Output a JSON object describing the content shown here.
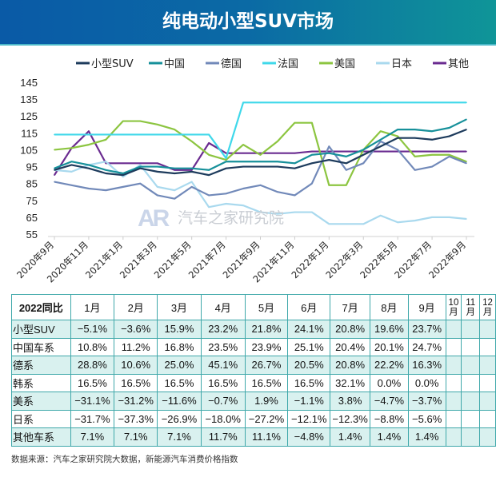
{
  "title": "纯电动小型SUV市场",
  "watermark": {
    "logo": "AR",
    "text": "汽车之家研究院"
  },
  "chart_data": {
    "type": "line",
    "title": "",
    "xlabel": "",
    "ylabel": "",
    "ylim": [
      55,
      145
    ],
    "yticks": [
      55,
      65,
      75,
      85,
      95,
      105,
      115,
      125,
      135,
      145
    ],
    "grid": false,
    "legend": "top",
    "x": [
      "2020年9月",
      "2020年10月",
      "2020年11月",
      "2020年12月",
      "2021年1月",
      "2021年2月",
      "2021年3月",
      "2021年4月",
      "2021年5月",
      "2021年6月",
      "2021年7月",
      "2021年8月",
      "2021年9月",
      "2021年10月",
      "2021年11月",
      "2021年12月",
      "2022年1月",
      "2022年2月",
      "2022年3月",
      "2022年4月",
      "2022年5月",
      "2022年6月",
      "2022年7月",
      "2022年8月",
      "2022年9月"
    ],
    "xtick_labels": [
      "2020年9月",
      "2020年11月",
      "2021年1月",
      "2021年3月",
      "2021年5月",
      "2021年7月",
      "2021年9月",
      "2021年11月",
      "2022年1月",
      "2022年3月",
      "2022年5月",
      "2022年7月",
      "2022年9月"
    ],
    "series": [
      {
        "name": "小型SUV",
        "color": "#1d3b5c",
        "values": [
          93,
          96,
          94,
          91,
          90,
          94,
          92,
          91,
          92,
          90,
          94,
          95,
          95,
          95,
          94,
          97,
          99,
          97,
          102,
          107,
          112,
          112,
          111,
          113,
          117
        ]
      },
      {
        "name": "中国",
        "color": "#16909a",
        "values": [
          94,
          98,
          96,
          93,
          91,
          95,
          95,
          94,
          94,
          93,
          98,
          98,
          98,
          98,
          97,
          102,
          103,
          101,
          105,
          111,
          117,
          117,
          116,
          118,
          123
        ]
      },
      {
        "name": "德国",
        "color": "#7189b9",
        "values": [
          86,
          84,
          82,
          81,
          83,
          85,
          78,
          76,
          83,
          78,
          79,
          82,
          84,
          80,
          78,
          85,
          107,
          93,
          97,
          110,
          105,
          93,
          95,
          101,
          97
        ]
      },
      {
        "name": "法国",
        "color": "#3fd8ea",
        "values": [
          114,
          114,
          114,
          114,
          114,
          114,
          114,
          114,
          114,
          114,
          100,
          133,
          133,
          133,
          133,
          133,
          133,
          133,
          133,
          133,
          133,
          133,
          133,
          133,
          133
        ]
      },
      {
        "name": "美国",
        "color": "#8cc540",
        "values": [
          105,
          106,
          108,
          111,
          122,
          122,
          120,
          117,
          110,
          102,
          99,
          108,
          102,
          110,
          121,
          121,
          84,
          84,
          105,
          116,
          113,
          101,
          102,
          102,
          98
        ]
      },
      {
        "name": "日本",
        "color": "#a9d9ee",
        "values": [
          93,
          92,
          96,
          98,
          89,
          96,
          83,
          81,
          86,
          71,
          73,
          72,
          68,
          67,
          68,
          68,
          61,
          61,
          61,
          66,
          62,
          63,
          65,
          65,
          64
        ]
      },
      {
        "name": "其他",
        "color": "#6a2b90",
        "values": [
          90,
          106,
          116,
          97,
          97,
          97,
          97,
          93,
          93,
          109,
          103,
          103,
          103,
          103,
          103,
          104,
          104,
          104,
          104,
          104,
          104,
          104,
          104,
          104,
          104
        ]
      }
    ]
  },
  "table": {
    "corner": "2022同比",
    "columns": [
      "1月",
      "2月",
      "3月",
      "4月",
      "5月",
      "6月",
      "7月",
      "8月",
      "9月",
      "10月",
      "11月",
      "12月"
    ],
    "rows": [
      {
        "label": "小型SUV",
        "values": [
          "−5.1%",
          "−3.6%",
          "15.9%",
          "23.2%",
          "21.8%",
          "24.1%",
          "20.8%",
          "19.6%",
          "23.7%",
          "",
          "",
          ""
        ]
      },
      {
        "label": "中国车系",
        "values": [
          "10.8%",
          "11.2%",
          "16.8%",
          "23.5%",
          "23.9%",
          "25.1%",
          "20.4%",
          "20.1%",
          "24.7%",
          "",
          "",
          ""
        ]
      },
      {
        "label": "德系",
        "values": [
          "28.8%",
          "10.6%",
          "25.0%",
          "45.1%",
          "26.7%",
          "20.5%",
          "20.8%",
          "22.2%",
          "16.3%",
          "",
          "",
          ""
        ]
      },
      {
        "label": "韩系",
        "values": [
          "16.5%",
          "16.5%",
          "16.5%",
          "16.5%",
          "16.5%",
          "16.5%",
          "32.1%",
          "0.0%",
          "0.0%",
          "",
          "",
          ""
        ]
      },
      {
        "label": "美系",
        "values": [
          "−31.1%",
          "−31.2%",
          "−11.6%",
          "−0.7%",
          "1.9%",
          "−1.1%",
          "3.8%",
          "−4.7%",
          "−3.7%",
          "",
          "",
          ""
        ]
      },
      {
        "label": "日系",
        "values": [
          "−31.7%",
          "−37.3%",
          "−26.9%",
          "−18.0%",
          "−27.2%",
          "−12.1%",
          "−12.3%",
          "−8.8%",
          "−5.6%",
          "",
          "",
          ""
        ]
      },
      {
        "label": "其他车系",
        "values": [
          "7.1%",
          "7.1%",
          "7.1%",
          "11.7%",
          "11.1%",
          "−4.8%",
          "1.4%",
          "1.4%",
          "1.4%",
          "",
          "",
          ""
        ]
      }
    ]
  },
  "source": "数据来源：汽车之家研究院大数据，新能源汽车消费价格指数"
}
